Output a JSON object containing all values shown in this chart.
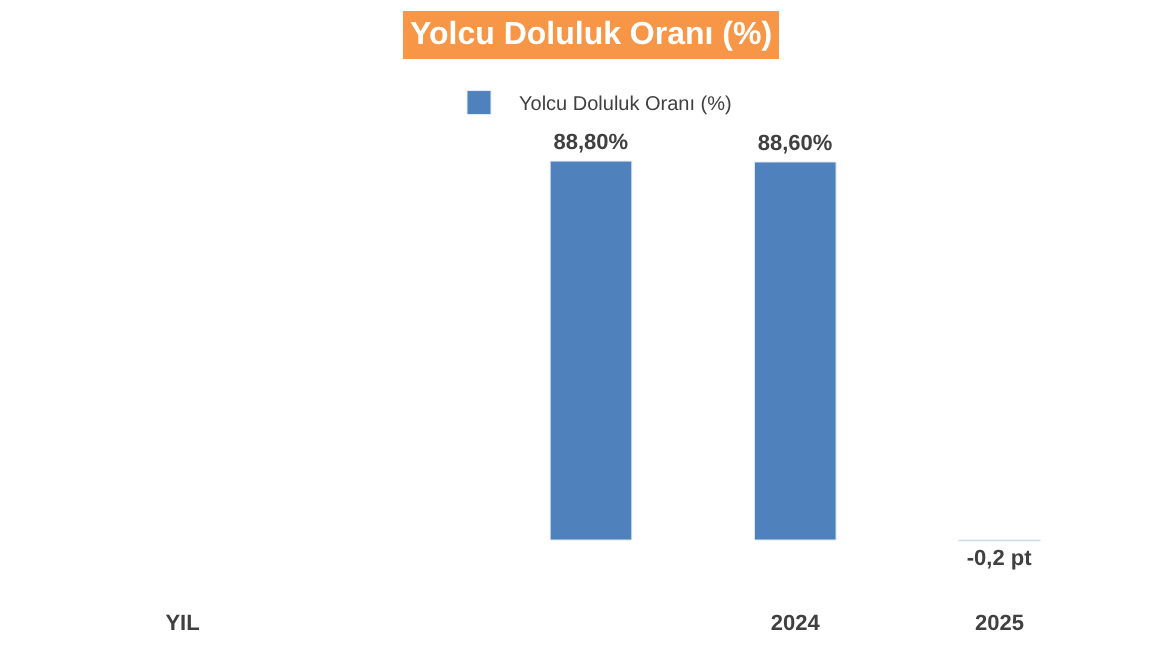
{
  "chart_data": {
    "type": "bar",
    "title": "Yolcu Doluluk Oranı (%)",
    "categories": [
      "YIL",
      null,
      null,
      "2024",
      "2025"
    ],
    "series": [
      {
        "name": "Yolcu Doluluk Oranı (%)",
        "color": "#4f81bd",
        "values": [
          null,
          null,
          88.8,
          88.6,
          -0.2
        ],
        "value_labels": [
          null,
          null,
          "88,80%",
          "88,60%",
          "-0,2 pt"
        ]
      }
    ],
    "legend": "top"
  }
}
